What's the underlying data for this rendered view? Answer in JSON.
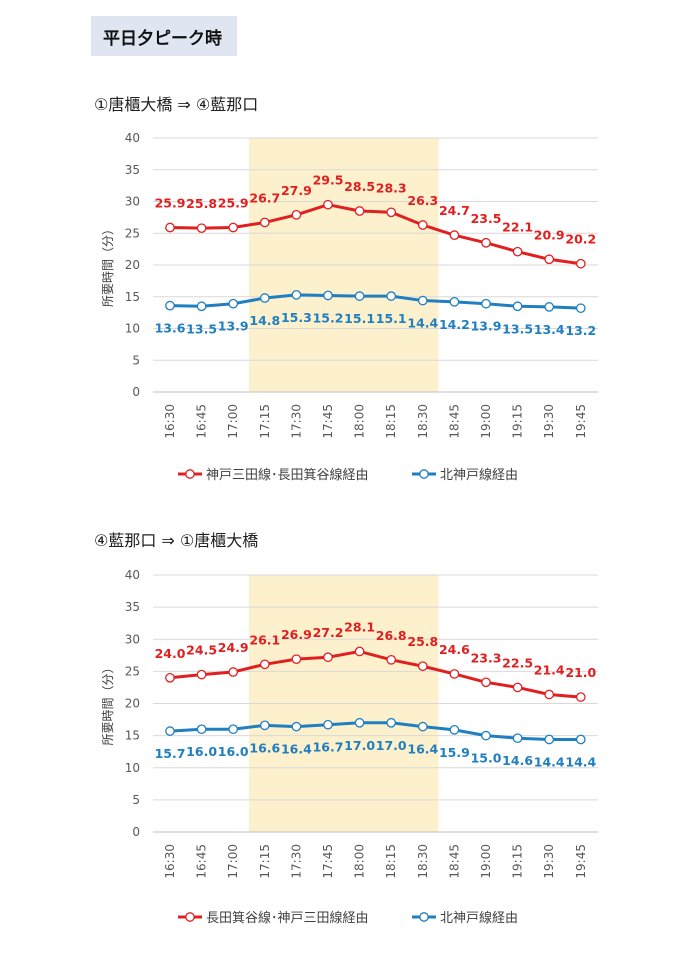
{
  "header": {
    "title": "平日夕ピーク時"
  },
  "chart_data": [
    {
      "type": "line",
      "title": "①唐櫃大橋 ⇒ ④藍那口",
      "ylabel": "所要時間（分）",
      "ylim": [
        0,
        40
      ],
      "yticks": [
        0,
        5,
        10,
        15,
        20,
        25,
        30,
        35,
        40
      ],
      "categories": [
        "16:30",
        "16:45",
        "17:00",
        "17:15",
        "17:30",
        "17:45",
        "18:00",
        "18:15",
        "18:30",
        "18:45",
        "19:00",
        "19:15",
        "19:30",
        "19:45"
      ],
      "highlight_range": [
        "17:15",
        "18:30"
      ],
      "highlight_color": "#fdf0cc",
      "grid": true,
      "legend_position": "bottom",
      "series": [
        {
          "name": "神戸三田線･長田箕谷線経由",
          "color": "#e02020",
          "values": [
            25.9,
            25.8,
            25.9,
            26.7,
            27.9,
            29.5,
            28.5,
            28.3,
            26.3,
            24.7,
            23.5,
            22.1,
            20.9,
            20.2
          ]
        },
        {
          "name": "北神戸線経由",
          "color": "#1f7fc0",
          "values": [
            13.6,
            13.5,
            13.9,
            14.8,
            15.3,
            15.2,
            15.1,
            15.1,
            14.4,
            14.2,
            13.9,
            13.5,
            13.4,
            13.2
          ]
        }
      ]
    },
    {
      "type": "line",
      "title": "④藍那口 ⇒ ①唐櫃大橋",
      "ylabel": "所要時間（分）",
      "ylim": [
        0,
        40
      ],
      "yticks": [
        0,
        5,
        10,
        15,
        20,
        25,
        30,
        35,
        40
      ],
      "categories": [
        "16:30",
        "16:45",
        "17:00",
        "17:15",
        "17:30",
        "17:45",
        "18:00",
        "18:15",
        "18:30",
        "18:45",
        "19:00",
        "19:15",
        "19:30",
        "19:45"
      ],
      "highlight_range": [
        "17:15",
        "18:30"
      ],
      "highlight_color": "#fdf0cc",
      "grid": true,
      "legend_position": "bottom",
      "series": [
        {
          "name": "長田箕谷線･神戸三田線経由",
          "color": "#e02020",
          "values": [
            24.0,
            24.5,
            24.9,
            26.1,
            26.9,
            27.2,
            28.1,
            26.8,
            25.8,
            24.6,
            23.3,
            22.5,
            21.4,
            21.0
          ]
        },
        {
          "name": "北神戸線経由",
          "color": "#1f7fc0",
          "values": [
            15.7,
            16.0,
            16.0,
            16.6,
            16.4,
            16.7,
            17.0,
            17.0,
            16.4,
            15.9,
            15.0,
            14.6,
            14.4,
            14.4
          ]
        }
      ]
    }
  ]
}
